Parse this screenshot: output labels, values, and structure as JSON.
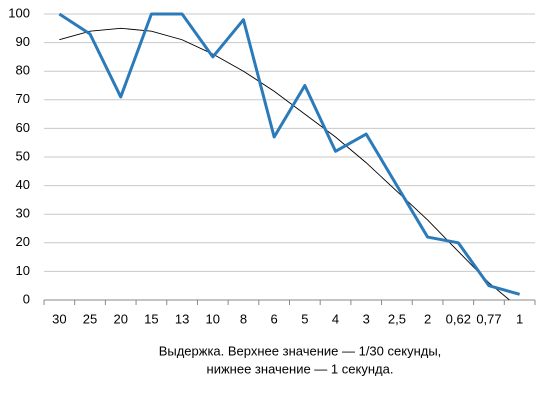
{
  "chart_data": {
    "type": "line",
    "categories": [
      "30",
      "25",
      "20",
      "15",
      "13",
      "10",
      "8",
      "6",
      "5",
      "4",
      "3",
      "2,5",
      "2",
      "0,62",
      "0,77",
      "1"
    ],
    "values": [
      100,
      93,
      71,
      100,
      100,
      85,
      98,
      57,
      75,
      52,
      58,
      40,
      22,
      20,
      5,
      2
    ],
    "color": "#2b7bba",
    "trendline": {
      "color": "#000000",
      "values": [
        91,
        94,
        95,
        94,
        91,
        86,
        80,
        73,
        65,
        57,
        48,
        38,
        28,
        17,
        6,
        -3
      ]
    },
    "ylim": [
      0,
      100
    ],
    "yticks": [
      0,
      10,
      20,
      30,
      40,
      50,
      60,
      70,
      80,
      90,
      100
    ],
    "grid": true,
    "x_label": [
      "Выдержка. Верхнее значение — 1/30 секунды,",
      "нижнее значение — 1 секунда."
    ]
  }
}
